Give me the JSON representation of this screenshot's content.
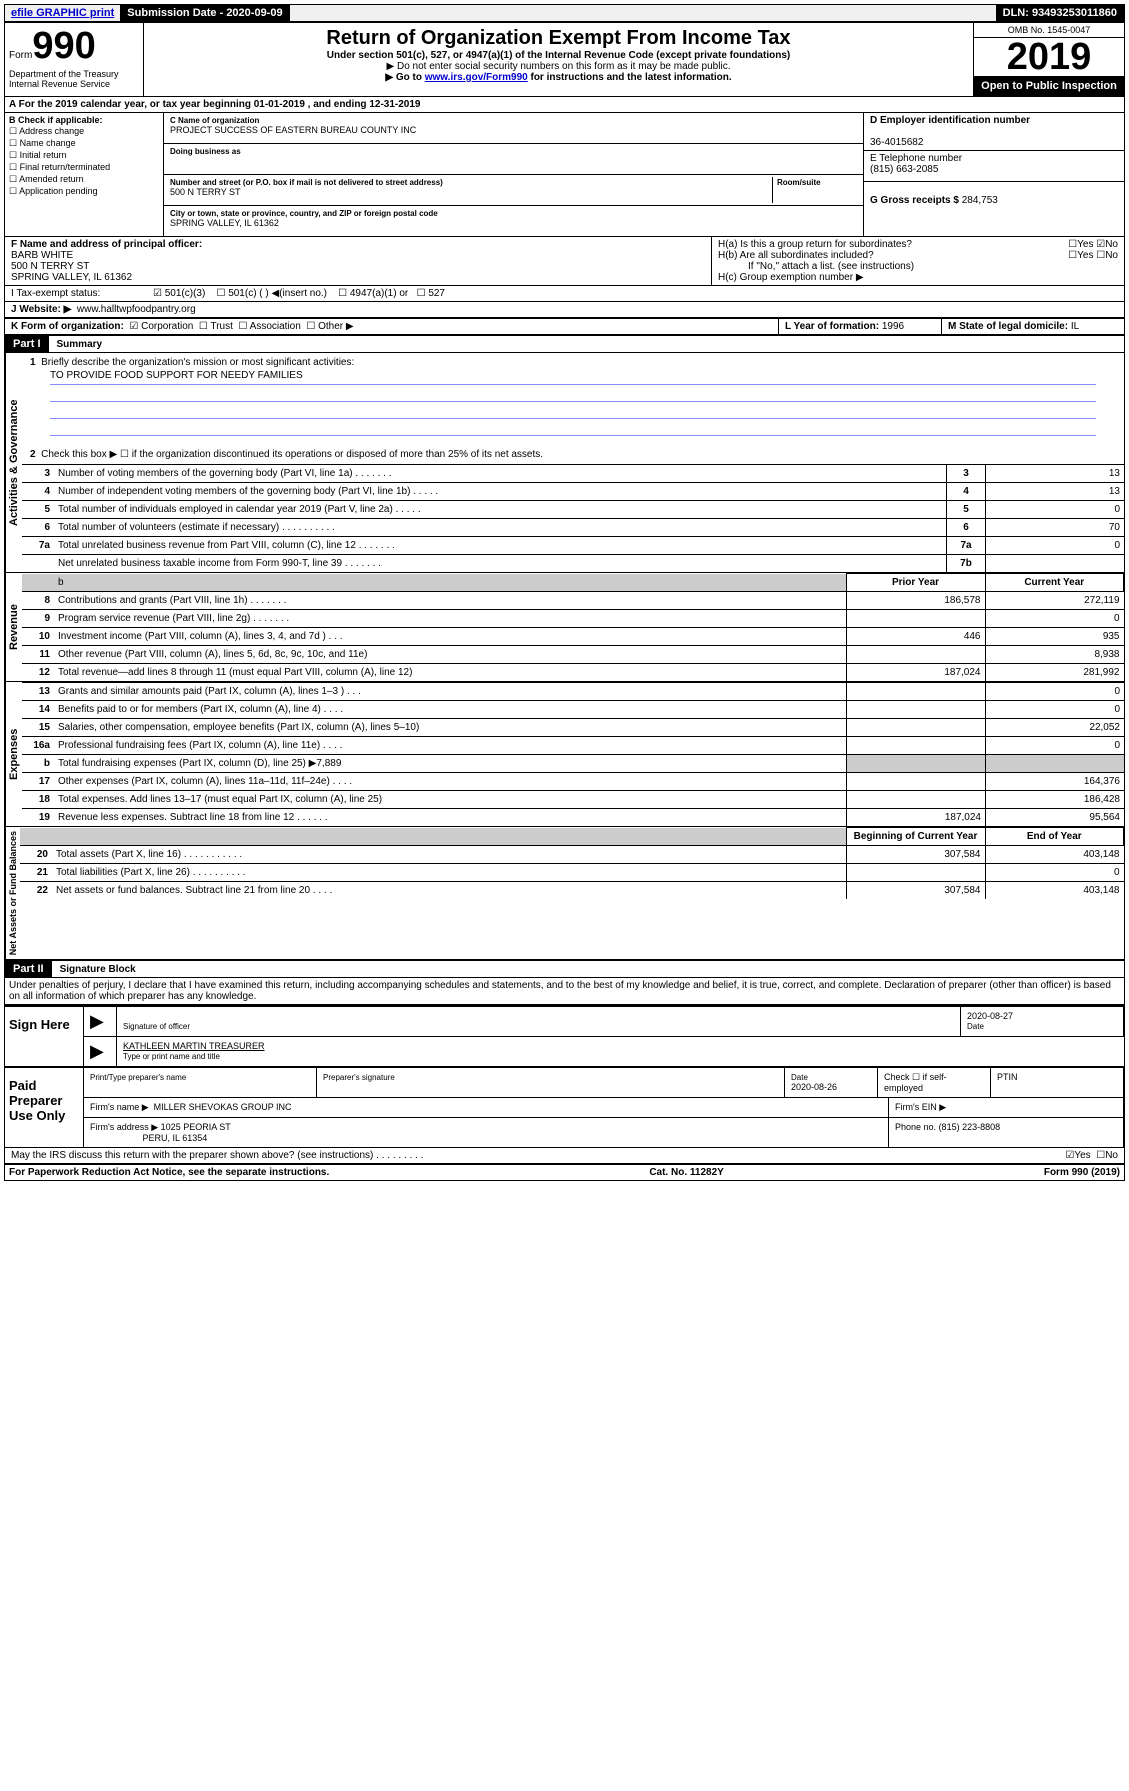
{
  "topbar": {
    "efile": "efile GRAPHIC print",
    "submission": "Submission Date - 2020-09-09",
    "dln": "DLN: 93493253011860"
  },
  "header": {
    "form_prefix": "Form",
    "form_num": "990",
    "dept": "Department of the Treasury Internal Revenue Service",
    "title": "Return of Organization Exempt From Income Tax",
    "sub": "Under section 501(c), 527, or 4947(a)(1) of the Internal Revenue Code (except private foundations)",
    "note1": "▶ Do not enter social security numbers on this form as it may be made public.",
    "note2_pre": "▶ Go to ",
    "note2_link": "www.irs.gov/Form990",
    "note2_post": " for instructions and the latest information.",
    "omb": "OMB No. 1545-0047",
    "year": "2019",
    "open": "Open to Public Inspection"
  },
  "row_a": "A For the 2019 calendar year, or tax year beginning 01-01-2019    , and ending 12-31-2019",
  "block_b": {
    "label": "B Check if applicable:",
    "opts": [
      "Address change",
      "Name change",
      "Initial return",
      "Final return/terminated",
      "Amended return",
      "Application pending"
    ]
  },
  "block_c": {
    "name_label": "C Name of organization",
    "name": "PROJECT SUCCESS OF EASTERN BUREAU COUNTY INC",
    "dba_label": "Doing business as",
    "addr_label": "Number and street (or P.O. box if mail is not delivered to street address)",
    "room_label": "Room/suite",
    "addr": "500 N TERRY ST",
    "city_label": "City or town, state or province, country, and ZIP or foreign postal code",
    "city": "SPRING VALLEY, IL  61362"
  },
  "block_d": {
    "label": "D Employer identification number",
    "value": "36-4015682"
  },
  "block_e": {
    "label": "E Telephone number",
    "value": "(815) 663-2085"
  },
  "block_g": {
    "label": "G Gross receipts $",
    "value": "284,753"
  },
  "block_f": {
    "label": "F  Name and address of principal officer:",
    "name": "BARB WHITE",
    "addr1": "500 N TERRY ST",
    "addr2": "SPRING VALLEY, IL  61362"
  },
  "block_h": {
    "ha": "H(a)  Is this a group return for subordinates?",
    "hb": "H(b)  Are all subordinates included?",
    "hb_note": "If \"No,\" attach a list. (see instructions)",
    "hc": "H(c)  Group exemption number ▶",
    "yes": "Yes",
    "no": "No"
  },
  "row_i": {
    "label": "I    Tax-exempt status:",
    "o1": "501(c)(3)",
    "o2": "501(c) (   ) ◀(insert no.)",
    "o3": "4947(a)(1) or",
    "o4": "527"
  },
  "row_j": {
    "label": "J   Website: ▶",
    "value": "www.halltwpfoodpantry.org"
  },
  "row_k": {
    "label": "K Form of organization:",
    "corp": "Corporation",
    "trust": "Trust",
    "assoc": "Association",
    "other": "Other ▶"
  },
  "row_l": {
    "label": "L Year of formation:",
    "value": "1996"
  },
  "row_m": {
    "label": "M State of legal domicile:",
    "value": "IL"
  },
  "part1": {
    "header": "Part I",
    "title": "Summary",
    "q1": "Briefly describe the organization's mission or most significant activities:",
    "mission": "TO PROVIDE FOOD SUPPORT FOR NEEDY FAMILIES",
    "q2": "Check this box ▶ ☐  if the organization discontinued its operations or disposed of more than 25% of its net assets.",
    "vtext_ag": "Activities & Governance",
    "vtext_rev": "Revenue",
    "vtext_exp": "Expenses",
    "vtext_na": "Net Assets or Fund Balances",
    "lines_ag": [
      {
        "n": "3",
        "t": "Number of voting members of the governing body (Part VI, line 1a)  .    .    .    .    .    .    .",
        "c": "3",
        "v": "13"
      },
      {
        "n": "4",
        "t": "Number of independent voting members of the governing body (Part VI, line 1b)  .    .    .    .    .",
        "c": "4",
        "v": "13"
      },
      {
        "n": "5",
        "t": "Total number of individuals employed in calendar year 2019 (Part V, line 2a)  .    .    .    .    .",
        "c": "5",
        "v": "0"
      },
      {
        "n": "6",
        "t": "Total number of volunteers (estimate if necessary)  .    .    .    .    .    .    .    .    .    .",
        "c": "6",
        "v": "70"
      },
      {
        "n": "7a",
        "t": "Total unrelated business revenue from Part VIII, column (C), line 12   .    .    .    .    .    .    .",
        "c": "7a",
        "v": "0"
      },
      {
        "n": "",
        "t": "Net unrelated business taxable income from Form 990-T, line 39  .    .    .    .    .    .    .",
        "c": "7b",
        "v": ""
      }
    ],
    "col_prior": "Prior Year",
    "col_current": "Current Year",
    "lines_rev": [
      {
        "n": "8",
        "t": "Contributions and grants (Part VIII, line 1h)   .    .    .    .    .    .    .",
        "p": "186,578",
        "c": "272,119"
      },
      {
        "n": "9",
        "t": "Program service revenue (Part VIII, line 2g)   .    .    .    .    .    .    .",
        "p": "",
        "c": "0"
      },
      {
        "n": "10",
        "t": "Investment income (Part VIII, column (A), lines 3, 4, and 7d )   .    .    .",
        "p": "446",
        "c": "935"
      },
      {
        "n": "11",
        "t": "Other revenue (Part VIII, column (A), lines 5, 6d, 8c, 9c, 10c, and 11e)",
        "p": "",
        "c": "8,938"
      },
      {
        "n": "12",
        "t": "Total revenue—add lines 8 through 11 (must equal Part VIII, column (A), line 12)",
        "p": "187,024",
        "c": "281,992"
      }
    ],
    "lines_exp": [
      {
        "n": "13",
        "t": "Grants and similar amounts paid (Part IX, column (A), lines 1–3 )  .    .    .",
        "p": "",
        "c": "0"
      },
      {
        "n": "14",
        "t": "Benefits paid to or for members (Part IX, column (A), line 4)  .    .    .    .",
        "p": "",
        "c": "0"
      },
      {
        "n": "15",
        "t": "Salaries, other compensation, employee benefits (Part IX, column (A), lines 5–10)",
        "p": "",
        "c": "22,052"
      },
      {
        "n": "16a",
        "t": "Professional fundraising fees (Part IX, column (A), line 11e)  .    .    .    .",
        "p": "",
        "c": "0"
      },
      {
        "n": "b",
        "t": "Total fundraising expenses (Part IX, column (D), line 25) ▶7,889",
        "p": "shade",
        "c": "shade"
      },
      {
        "n": "17",
        "t": "Other expenses (Part IX, column (A), lines 11a–11d, 11f–24e)  .    .    .    .",
        "p": "",
        "c": "164,376"
      },
      {
        "n": "18",
        "t": "Total expenses. Add lines 13–17 (must equal Part IX, column (A), line 25)",
        "p": "",
        "c": "186,428"
      },
      {
        "n": "19",
        "t": "Revenue less expenses. Subtract line 18 from line 12   .    .    .    .    .    .",
        "p": "187,024",
        "c": "95,564"
      }
    ],
    "col_begin": "Beginning of Current Year",
    "col_end": "End of Year",
    "lines_na": [
      {
        "n": "20",
        "t": "Total assets (Part X, line 16)  .    .    .    .    .    .    .    .    .    .    .",
        "p": "307,584",
        "c": "403,148"
      },
      {
        "n": "21",
        "t": "Total liabilities (Part X, line 26)  .    .    .    .    .    .    .    .    .    .",
        "p": "",
        "c": "0"
      },
      {
        "n": "22",
        "t": "Net assets or fund balances. Subtract line 21 from line 20   .    .    .    .",
        "p": "307,584",
        "c": "403,148"
      }
    ]
  },
  "part2": {
    "header": "Part II",
    "title": "Signature Block",
    "penalty": "Under penalties of perjury, I declare that I have examined this return, including accompanying schedules and statements, and to the best of my knowledge and belief, it is true, correct, and complete. Declaration of preparer (other than officer) is based on all information of which preparer has any knowledge.",
    "sign_here": "Sign Here",
    "sig_officer": "Signature of officer",
    "date1": "2020-08-27",
    "date_label": "Date",
    "officer_name": "KATHLEEN MARTIN  TREASURER",
    "type_name": "Type or print name and title",
    "paid": "Paid Preparer Use Only",
    "pt_name_label": "Print/Type preparer's name",
    "pt_sig_label": "Preparer's signature",
    "pt_date_label": "Date",
    "pt_date": "2020-08-26",
    "pt_check": "Check ☐ if self-employed",
    "ptin": "PTIN",
    "firm_name_label": "Firm's name    ▶",
    "firm_name": "MILLER SHEVOKAS GROUP INC",
    "firm_ein": "Firm's EIN ▶",
    "firm_addr_label": "Firm's address ▶",
    "firm_addr1": "1025 PEORIA ST",
    "firm_addr2": "PERU, IL  61354",
    "firm_phone_label": "Phone no.",
    "firm_phone": "(815) 223-8808",
    "discuss": "May the IRS discuss this return with the preparer shown above? (see instructions)    .    .    .    .    .    .    .    .    .",
    "yes": "Yes",
    "no": "No"
  },
  "footer": {
    "left": "For Paperwork Reduction Act Notice, see the separate instructions.",
    "mid": "Cat. No. 11282Y",
    "right": "Form 990 (2019)"
  }
}
